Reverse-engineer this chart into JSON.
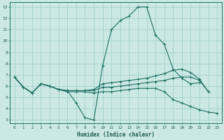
{
  "background_color": "#cce8e4",
  "grid_color": "#99cccc",
  "line_color": "#1a6e62",
  "xlabel": "Humidex (Indice chaleur)",
  "xlim": [
    -0.5,
    23.5
  ],
  "ylim": [
    2.7,
    13.4
  ],
  "yticks": [
    3,
    4,
    5,
    6,
    7,
    8,
    9,
    10,
    11,
    12,
    13
  ],
  "xticks": [
    0,
    1,
    2,
    3,
    4,
    5,
    6,
    7,
    8,
    9,
    10,
    11,
    12,
    13,
    14,
    15,
    16,
    17,
    18,
    19,
    20,
    21,
    22,
    23
  ],
  "series": [
    {
      "x": [
        0,
        1,
        2,
        3,
        4,
        5,
        6,
        7,
        8,
        9,
        10,
        11,
        12,
        13,
        14,
        15,
        16,
        17,
        18,
        19,
        20,
        21
      ],
      "y": [
        6.8,
        5.9,
        5.4,
        6.2,
        6.0,
        5.7,
        5.6,
        4.5,
        3.2,
        3.0,
        7.8,
        11.0,
        11.8,
        12.2,
        13.0,
        13.0,
        10.5,
        9.7,
        7.5,
        6.7,
        6.2,
        6.3
      ]
    },
    {
      "x": [
        0,
        1,
        2,
        3,
        4,
        5,
        6,
        7,
        8,
        9,
        10,
        11,
        12,
        13,
        14,
        15,
        16,
        17,
        18,
        19,
        20,
        21,
        22,
        23
      ],
      "y": [
        6.8,
        5.9,
        5.4,
        6.2,
        6.0,
        5.7,
        5.6,
        5.6,
        5.6,
        5.6,
        5.9,
        5.9,
        6.0,
        6.1,
        6.2,
        6.3,
        6.4,
        6.5,
        6.7,
        6.8,
        6.8,
        6.5,
        5.5,
        null
      ]
    },
    {
      "x": [
        0,
        1,
        2,
        3,
        4,
        5,
        6,
        7,
        8,
        9,
        10,
        11,
        12,
        13,
        14,
        15,
        16,
        17,
        18,
        19,
        20,
        21,
        22,
        23
      ],
      "y": [
        6.8,
        5.9,
        5.4,
        6.2,
        6.0,
        5.7,
        5.5,
        5.5,
        5.5,
        5.4,
        5.5,
        5.5,
        5.6,
        5.7,
        5.8,
        5.8,
        5.8,
        5.5,
        4.8,
        4.5,
        4.2,
        3.9,
        3.7,
        3.6
      ]
    },
    {
      "x": [
        0,
        1,
        2,
        3,
        4,
        5,
        6,
        7,
        8,
        9,
        10,
        11,
        12,
        13,
        14,
        15,
        16,
        17,
        18,
        19,
        20,
        21,
        22
      ],
      "y": [
        6.8,
        5.9,
        5.4,
        6.2,
        6.0,
        5.7,
        5.6,
        5.6,
        5.6,
        5.7,
        6.2,
        6.3,
        6.4,
        6.5,
        6.6,
        6.7,
        6.9,
        7.1,
        7.4,
        7.5,
        7.2,
        6.6,
        5.5
      ]
    }
  ]
}
